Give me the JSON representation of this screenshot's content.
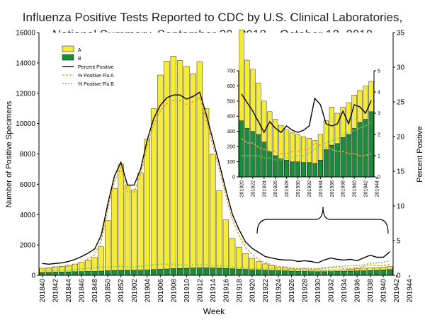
{
  "chart_data": {
    "type": "bar",
    "title_line1": "Influenza Positive Tests Reported to CDC by U.S. Clinical Laboratories,",
    "title_line2": "National Summary, September 30, 2018 – October 12, 2019",
    "xlabel": "Week",
    "ylabel_left": "Number of Positive Specimens",
    "ylabel_right": "Percent Positive",
    "ylim_left": [
      0,
      16000
    ],
    "ylim_right": [
      0,
      35
    ],
    "yticks_left": [
      0,
      2000,
      4000,
      6000,
      8000,
      10000,
      12000,
      14000,
      16000
    ],
    "yticks_right": [
      0,
      5,
      10,
      15,
      20,
      25,
      30,
      35
    ],
    "xtick_labels": [
      "201840",
      "201842",
      "201844",
      "201846",
      "201848",
      "201850",
      "201852",
      "201902",
      "201904",
      "201906",
      "201908",
      "201910",
      "201912",
      "201914",
      "201916",
      "201918",
      "201920",
      "201922",
      "201924",
      "201926",
      "201928",
      "201930",
      "201932",
      "201934",
      "201936",
      "201938",
      "201940",
      "201942",
      "201944"
    ],
    "legend": {
      "A": "A",
      "B": "B",
      "pct": "Percent Positive",
      "pctA": "% Positive Flu A",
      "pctB": "% Positive Flu B"
    },
    "colors": {
      "A": "#f5ec3a",
      "B": "#1a8c3a",
      "pct": "#000000",
      "pctA": "#e8a33a",
      "pctB": "#7bd14a"
    },
    "series": {
      "A": [
        280,
        300,
        350,
        380,
        430,
        500,
        600,
        750,
        900,
        1600,
        3300,
        5400,
        7000,
        5600,
        5300,
        6400,
        8600,
        10600,
        12800,
        13700,
        14000,
        13700,
        13300,
        12800,
        13600,
        10500,
        7500,
        5100,
        3200,
        2000,
        1450,
        1050,
        750,
        550,
        420,
        330,
        250,
        200,
        150,
        120,
        110,
        100,
        95,
        90,
        90,
        90,
        100,
        130,
        150,
        170,
        180,
        170,
        180,
        200
      ],
      "B": [
        190,
        200,
        210,
        220,
        230,
        240,
        250,
        260,
        270,
        280,
        300,
        320,
        330,
        330,
        330,
        340,
        360,
        380,
        400,
        420,
        440,
        460,
        470,
        480,
        490,
        490,
        480,
        470,
        450,
        430,
        410,
        390,
        370,
        350,
        330,
        310,
        300,
        290,
        280,
        270,
        260,
        250,
        240,
        240,
        250,
        260,
        270,
        280,
        290,
        300,
        320,
        340,
        360,
        380
      ],
      "pct": [
        1.7,
        1.6,
        1.7,
        1.8,
        2.0,
        2.3,
        2.7,
        3.2,
        3.8,
        5.8,
        10.3,
        14.3,
        16.3,
        13.0,
        13.0,
        15.3,
        19.5,
        22.6,
        24.5,
        25.6,
        26.0,
        26.0,
        25.4,
        25.8,
        26.4,
        23.2,
        19.6,
        16.1,
        12.3,
        8.8,
        6.6,
        4.8,
        3.9,
        3.3,
        2.7,
        2.5,
        2.3,
        2.2,
        2.2,
        2.0,
        2.1,
        2.0,
        1.8,
        2.2,
        2.5,
        2.3,
        2.2,
        2.3,
        2.1,
        2.5,
        2.9,
        2.6,
        2.6,
        3.4
      ],
      "pctA": [
        1.0,
        1.0,
        1.1,
        1.2,
        1.3,
        1.6,
        1.9,
        2.4,
        3.0,
        5.0,
        9.5,
        13.5,
        15.5,
        12.0,
        12.0,
        14.5,
        18.5,
        21.8,
        23.7,
        24.8,
        25.2,
        25.2,
        24.6,
        25.0,
        25.6,
        22.4,
        18.8,
        15.3,
        11.5,
        8.0,
        5.8,
        4.0,
        3.0,
        2.3,
        1.8,
        1.5,
        1.3,
        1.2,
        1.1,
        1.0,
        1.0,
        0.9,
        0.9,
        1.0,
        1.1,
        1.1,
        1.0,
        1.0,
        1.1,
        1.3,
        1.5,
        1.4,
        1.4,
        1.6
      ],
      "pctB": [
        0.7,
        0.7,
        0.7,
        0.7,
        0.8,
        0.8,
        0.9,
        1.0,
        1.1,
        1.2,
        1.2,
        1.3,
        1.3,
        1.2,
        1.2,
        1.3,
        1.4,
        1.5,
        1.6,
        1.6,
        1.6,
        1.5,
        1.5,
        1.5,
        1.5,
        1.5,
        1.4,
        1.4,
        1.3,
        1.2,
        1.1,
        1.0,
        1.0,
        0.9,
        0.9,
        0.9,
        0.8,
        0.8,
        0.9,
        0.9,
        1.0,
        1.0,
        1.0,
        1.1,
        1.2,
        1.3,
        1.3,
        1.4,
        1.4,
        1.5,
        1.7,
        1.8,
        1.9,
        2.1
      ]
    },
    "inset": {
      "ylim_left": [
        0,
        700
      ],
      "ylim_right": [
        0,
        5
      ],
      "yticks_left": [
        0,
        50,
        100,
        150,
        200,
        250,
        300,
        350,
        400,
        450,
        500,
        550,
        600,
        650,
        700
      ],
      "yticks_right": [
        0,
        1,
        2,
        3,
        4,
        5
      ],
      "xtick_labels": [
        "201920",
        "201922",
        "201924",
        "201926",
        "201928",
        "201930",
        "201932",
        "201934",
        "201936",
        "201938",
        "201940",
        "201942",
        "201944"
      ],
      "A": [
        600,
        450,
        410,
        340,
        270,
        260,
        240,
        220,
        200,
        190,
        180,
        170,
        160,
        150,
        170,
        190,
        250,
        200,
        200,
        210,
        220,
        210,
        220,
        200
      ],
      "B": [
        370,
        320,
        300,
        280,
        230,
        170,
        140,
        120,
        110,
        100,
        100,
        95,
        95,
        90,
        110,
        180,
        210,
        220,
        260,
        280,
        320,
        360,
        380,
        430
      ],
      "pct": [
        3.9,
        3.5,
        3.1,
        2.6,
        2.1,
        2.6,
        2.3,
        2.1,
        2.4,
        2.2,
        2.1,
        2.2,
        2.4,
        3.7,
        3.4,
        2.5,
        2.4,
        2.5,
        3.1,
        2.5,
        3.4,
        3.3,
        3.0,
        3.6
      ],
      "pctA": [
        1.8,
        1.6,
        1.6,
        1.4,
        1.3,
        1.2,
        1.2,
        1.1,
        1.1,
        1.2,
        1.2,
        1.3,
        1.3,
        1.6,
        1.5,
        1.4,
        1.3,
        1.2,
        1.2,
        1.1,
        1.1,
        1.0,
        1.0,
        1.1
      ],
      "pctB": [
        1.0,
        1.0,
        1.0,
        1.0,
        0.9,
        0.9,
        0.8,
        0.8,
        0.9,
        0.9,
        1.0,
        1.0,
        1.1,
        1.3,
        1.5,
        1.6,
        1.7,
        1.8,
        2.0,
        2.1,
        2.2,
        2.3,
        2.4,
        2.6
      ]
    }
  }
}
